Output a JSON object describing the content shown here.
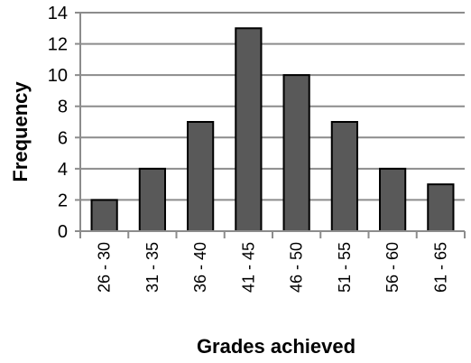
{
  "chart_data": {
    "type": "bar",
    "categories": [
      "26 - 30",
      "31 - 35",
      "36 - 40",
      "41 - 45",
      "46 - 50",
      "51 - 55",
      "56 - 60",
      "61 - 65"
    ],
    "values": [
      2,
      4,
      7,
      13,
      10,
      7,
      4,
      3
    ],
    "title": "",
    "xlabel": "Grades achieved",
    "ylabel": "Frequency",
    "ylim": [
      0,
      14
    ],
    "yticks": [
      0,
      2,
      4,
      6,
      8,
      10,
      12,
      14
    ],
    "grid": true,
    "legend": "none",
    "colors": {
      "bar_fill": "#595959",
      "bar_stroke": "#000000",
      "grid": "#8c8c8c",
      "axis": "#8c8c8c"
    }
  }
}
